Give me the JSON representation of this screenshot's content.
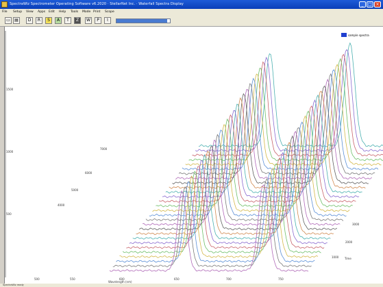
{
  "window": {
    "title": "SpectraWiz Spectrometer Operating Software v6.2020 · StellarNet Inc. · Waterfall Spectra Display",
    "minimize_label": "_",
    "maximize_label": "□",
    "close_label": "×"
  },
  "menubar": {
    "items": [
      "File",
      "Setup",
      "View",
      "Apps",
      "Edit",
      "Help",
      "Tools",
      "Mode",
      "Print",
      "Scope"
    ]
  },
  "toolbar": {
    "buttons": [
      {
        "name": "open-file-button",
        "glyph": "▭"
      },
      {
        "name": "save-file-button",
        "glyph": "▤"
      },
      {
        "name": "dark-button",
        "glyph": "D"
      },
      {
        "name": "reference-button",
        "glyph": "R"
      },
      {
        "name": "scope-mode-button",
        "glyph": "S"
      },
      {
        "name": "absorbance-mode-button",
        "glyph": "A"
      },
      {
        "name": "transmission-mode-button",
        "glyph": "T"
      },
      {
        "name": "zoom-button",
        "glyph": "Z"
      },
      {
        "name": "waterfall-button",
        "glyph": "W"
      },
      {
        "name": "print-button",
        "glyph": "P"
      },
      {
        "name": "chart-button",
        "glyph": "⌇"
      }
    ],
    "progress": 0.95
  },
  "legend": {
    "label": "sample spectra",
    "color": "#2040d0"
  },
  "chart_data": {
    "type": "line",
    "title": "",
    "xlabel": "Wavelength (nm)",
    "ylabel": "",
    "x_ticks": [
      "500",
      "550",
      "600",
      "650",
      "700",
      "750"
    ],
    "y_ticks": [
      "1500",
      "1000",
      "500"
    ],
    "depth_ticks": [
      "7000",
      "6000",
      "5000",
      "4000",
      "3000",
      "2000",
      "1000"
    ],
    "depth_label": "Time",
    "num_series": 28,
    "peaks": [
      {
        "center_nm": 585,
        "height": 1050
      },
      {
        "center_nm": 710,
        "height": 1150
      }
    ],
    "grid": false,
    "legend_position": "top-right"
  },
  "status": {
    "text": "SpectraWiz ready"
  }
}
